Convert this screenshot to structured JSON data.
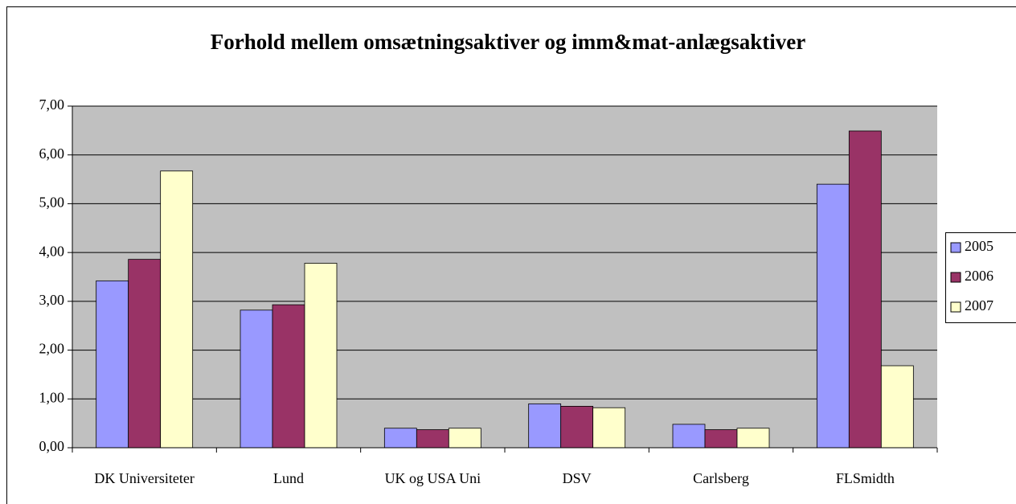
{
  "chart_data": {
    "type": "bar",
    "title": "Forhold mellem omsætningsaktiver og imm&mat-anlægsaktiver",
    "categories": [
      "DK Universiteter",
      "Lund",
      "UK og USA Uni",
      "DSV",
      "Carlsberg",
      "FLSmidth"
    ],
    "series": [
      {
        "name": "2005",
        "color": "#9999ff",
        "values": [
          3.42,
          2.82,
          0.4,
          0.9,
          0.48,
          5.4
        ]
      },
      {
        "name": "2006",
        "color": "#993366",
        "values": [
          3.86,
          2.93,
          0.37,
          0.85,
          0.37,
          6.49
        ]
      },
      {
        "name": "2007",
        "color": "#ffffcc",
        "values": [
          5.67,
          3.78,
          0.4,
          0.82,
          0.4,
          1.68
        ]
      }
    ],
    "ylim": [
      0,
      7
    ],
    "yticks": [
      {
        "value": 0,
        "label": "0,00"
      },
      {
        "value": 1,
        "label": "1,00"
      },
      {
        "value": 2,
        "label": "2,00"
      },
      {
        "value": 3,
        "label": "3,00"
      },
      {
        "value": 4,
        "label": "4,00"
      },
      {
        "value": 5,
        "label": "5,00"
      },
      {
        "value": 6,
        "label": "6,00"
      },
      {
        "value": 7,
        "label": "7,00"
      }
    ],
    "grid": true,
    "plot_background": "#c0c0c0",
    "legend": "right"
  }
}
